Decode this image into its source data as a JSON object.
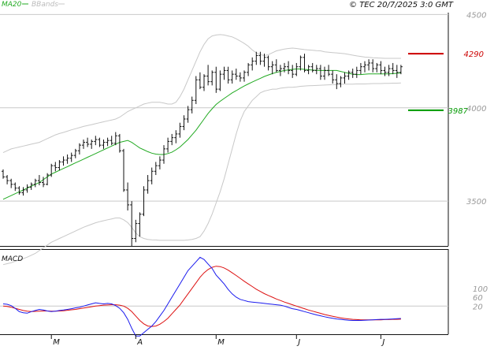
{
  "header": {
    "legend_ma": "MA20",
    "legend_bb": "BBands",
    "copyright": "© TEC 20/7/2025 3:0 GMT"
  },
  "colors": {
    "ma": "#22aa22",
    "bands": "#c8c8c8",
    "bars": "#111111",
    "resistance": "#cc0000",
    "support": "#009900",
    "macd": "#1a1aee",
    "signal": "#dd1111",
    "grid": "#c9c9c9",
    "axis_text": "#999999"
  },
  "chart_data": [
    {
      "type": "ohlc",
      "x_ticks": [
        {
          "label": "M",
          "index": 12
        },
        {
          "label": "A",
          "index": 33
        },
        {
          "label": "M",
          "index": 53
        },
        {
          "label": "J",
          "index": 73
        },
        {
          "label": "J",
          "index": 94
        }
      ],
      "y_ticks": [
        4500,
        4000,
        3500
      ],
      "ylim": [
        3260,
        4510
      ],
      "levels": {
        "resistance": {
          "value": 4290,
          "label": "4290"
        },
        "support": {
          "value": 3987,
          "label": "3987"
        }
      },
      "series_ma": [
        3510,
        3520,
        3530,
        3540,
        3550,
        3560,
        3570,
        3580,
        3590,
        3600,
        3615,
        3630,
        3645,
        3655,
        3665,
        3675,
        3685,
        3695,
        3705,
        3715,
        3725,
        3735,
        3745,
        3755,
        3765,
        3775,
        3785,
        3795,
        3805,
        3815,
        3820,
        3825,
        3815,
        3800,
        3785,
        3775,
        3765,
        3757,
        3752,
        3750,
        3750,
        3755,
        3762,
        3775,
        3790,
        3810,
        3830,
        3855,
        3880,
        3910,
        3940,
        3970,
        3995,
        4018,
        4035,
        4050,
        4065,
        4080,
        4092,
        4105,
        4117,
        4128,
        4138,
        4148,
        4158,
        4168,
        4176,
        4183,
        4190,
        4195,
        4200,
        4203,
        4206,
        4208,
        4208,
        4206,
        4204,
        4202,
        4201,
        4200,
        4200,
        4200,
        4200,
        4200,
        4195,
        4190,
        4185,
        4180,
        4178,
        4178,
        4180,
        4182,
        4182,
        4182,
        4182,
        4182,
        4182,
        4183,
        4185,
        4187
      ],
      "series_bb_upper": [
        3760,
        3770,
        3780,
        3785,
        3790,
        3795,
        3800,
        3805,
        3810,
        3815,
        3825,
        3835,
        3845,
        3855,
        3862,
        3868,
        3875,
        3882,
        3888,
        3894,
        3900,
        3905,
        3910,
        3915,
        3920,
        3925,
        3930,
        3935,
        3940,
        3950,
        3965,
        3980,
        3990,
        4000,
        4010,
        4020,
        4025,
        4030,
        4030,
        4030,
        4025,
        4020,
        4020,
        4030,
        4060,
        4100,
        4150,
        4200,
        4250,
        4300,
        4340,
        4370,
        4385,
        4390,
        4392,
        4390,
        4385,
        4380,
        4370,
        4358,
        4345,
        4330,
        4310,
        4295,
        4285,
        4280,
        4285,
        4295,
        4305,
        4310,
        4315,
        4318,
        4320,
        4318,
        4315,
        4312,
        4310,
        4308,
        4306,
        4305,
        4300,
        4298,
        4296,
        4294,
        4292,
        4290,
        4286,
        4282,
        4278,
        4275,
        4272,
        4270,
        4268,
        4267,
        4266,
        4265,
        4265,
        4265,
        4265,
        4265
      ],
      "series_bb_lower": [
        3160,
        3165,
        3170,
        3178,
        3185,
        3192,
        3200,
        3210,
        3220,
        3235,
        3250,
        3265,
        3280,
        3290,
        3300,
        3310,
        3320,
        3330,
        3340,
        3350,
        3360,
        3368,
        3376,
        3384,
        3390,
        3395,
        3400,
        3405,
        3410,
        3410,
        3400,
        3385,
        3360,
        3330,
        3310,
        3300,
        3295,
        3293,
        3292,
        3290,
        3290,
        3290,
        3290,
        3290,
        3290,
        3290,
        3292,
        3295,
        3300,
        3310,
        3340,
        3380,
        3430,
        3490,
        3550,
        3620,
        3700,
        3780,
        3860,
        3930,
        3980,
        4010,
        4040,
        4060,
        4080,
        4090,
        4095,
        4100,
        4100,
        4105,
        4108,
        4110,
        4110,
        4112,
        4115,
        4117,
        4118,
        4119,
        4120,
        4121,
        4122,
        4123,
        4124,
        4125,
        4126,
        4127,
        4127,
        4127,
        4128,
        4128,
        4128,
        4129,
        4130,
        4130,
        4130,
        4131,
        4131,
        4132,
        4132,
        4133
      ],
      "ohlc": [
        [
          3660,
          3670,
          3620,
          3630
        ],
        [
          3630,
          3640,
          3590,
          3610
        ],
        [
          3610,
          3620,
          3570,
          3590
        ],
        [
          3590,
          3600,
          3555,
          3570
        ],
        [
          3570,
          3580,
          3535,
          3545
        ],
        [
          3545,
          3575,
          3530,
          3560
        ],
        [
          3560,
          3590,
          3545,
          3575
        ],
        [
          3575,
          3600,
          3560,
          3590
        ],
        [
          3590,
          3620,
          3575,
          3610
        ],
        [
          3610,
          3640,
          3585,
          3600
        ],
        [
          3600,
          3630,
          3575,
          3590
        ],
        [
          3590,
          3650,
          3585,
          3640
        ],
        [
          3640,
          3700,
          3630,
          3690
        ],
        [
          3690,
          3710,
          3660,
          3680
        ],
        [
          3680,
          3720,
          3665,
          3710
        ],
        [
          3710,
          3740,
          3690,
          3720
        ],
        [
          3720,
          3750,
          3700,
          3730
        ],
        [
          3730,
          3760,
          3710,
          3745
        ],
        [
          3745,
          3780,
          3730,
          3770
        ],
        [
          3770,
          3810,
          3750,
          3800
        ],
        [
          3800,
          3830,
          3780,
          3815
        ],
        [
          3815,
          3840,
          3790,
          3805
        ],
        [
          3805,
          3830,
          3780,
          3820
        ],
        [
          3820,
          3850,
          3800,
          3830
        ],
        [
          3830,
          3840,
          3790,
          3800
        ],
        [
          3800,
          3830,
          3780,
          3815
        ],
        [
          3815,
          3840,
          3795,
          3825
        ],
        [
          3825,
          3850,
          3800,
          3810
        ],
        [
          3810,
          3870,
          3800,
          3850
        ],
        [
          3850,
          3860,
          3760,
          3770
        ],
        [
          3770,
          3780,
          3550,
          3560
        ],
        [
          3560,
          3600,
          3450,
          3480
        ],
        [
          3480,
          3500,
          3260,
          3300
        ],
        [
          3300,
          3400,
          3280,
          3380
        ],
        [
          3380,
          3440,
          3310,
          3430
        ],
        [
          3430,
          3580,
          3420,
          3560
        ],
        [
          3560,
          3640,
          3540,
          3610
        ],
        [
          3610,
          3680,
          3590,
          3660
        ],
        [
          3660,
          3710,
          3640,
          3690
        ],
        [
          3690,
          3740,
          3670,
          3720
        ],
        [
          3720,
          3800,
          3700,
          3780
        ],
        [
          3780,
          3840,
          3760,
          3820
        ],
        [
          3820,
          3860,
          3800,
          3840
        ],
        [
          3840,
          3880,
          3810,
          3860
        ],
        [
          3860,
          3920,
          3840,
          3900
        ],
        [
          3900,
          3960,
          3880,
          3940
        ],
        [
          3940,
          4010,
          3920,
          3990
        ],
        [
          3990,
          4060,
          3970,
          4040
        ],
        [
          4040,
          4170,
          4020,
          4150
        ],
        [
          4150,
          4190,
          4100,
          4110
        ],
        [
          4110,
          4180,
          4090,
          4170
        ],
        [
          4170,
          4230,
          4120,
          4140
        ],
        [
          4140,
          4200,
          4120,
          4190
        ],
        [
          4190,
          4220,
          4080,
          4100
        ],
        [
          4100,
          4200,
          4090,
          4180
        ],
        [
          4180,
          4220,
          4150,
          4200
        ],
        [
          4200,
          4220,
          4130,
          4150
        ],
        [
          4150,
          4200,
          4130,
          4180
        ],
        [
          4180,
          4210,
          4150,
          4170
        ],
        [
          4170,
          4190,
          4140,
          4160
        ],
        [
          4160,
          4200,
          4140,
          4190
        ],
        [
          4190,
          4240,
          4170,
          4230
        ],
        [
          4230,
          4270,
          4200,
          4250
        ],
        [
          4250,
          4300,
          4230,
          4280
        ],
        [
          4280,
          4300,
          4230,
          4250
        ],
        [
          4250,
          4290,
          4220,
          4270
        ],
        [
          4270,
          4280,
          4200,
          4220
        ],
        [
          4220,
          4250,
          4180,
          4230
        ],
        [
          4230,
          4260,
          4190,
          4200
        ],
        [
          4200,
          4230,
          4170,
          4210
        ],
        [
          4210,
          4240,
          4190,
          4220
        ],
        [
          4220,
          4250,
          4180,
          4200
        ],
        [
          4200,
          4230,
          4160,
          4180
        ],
        [
          4180,
          4240,
          4170,
          4220
        ],
        [
          4220,
          4280,
          4200,
          4270
        ],
        [
          4270,
          4290,
          4190,
          4200
        ],
        [
          4200,
          4230,
          4180,
          4220
        ],
        [
          4220,
          4240,
          4190,
          4200
        ],
        [
          4200,
          4230,
          4180,
          4210
        ],
        [
          4210,
          4230,
          4150,
          4170
        ],
        [
          4170,
          4220,
          4150,
          4200
        ],
        [
          4200,
          4230,
          4170,
          4180
        ],
        [
          4180,
          4200,
          4130,
          4150
        ],
        [
          4150,
          4180,
          4100,
          4130
        ],
        [
          4130,
          4170,
          4110,
          4160
        ],
        [
          4160,
          4190,
          4130,
          4170
        ],
        [
          4170,
          4200,
          4150,
          4190
        ],
        [
          4190,
          4210,
          4160,
          4180
        ],
        [
          4180,
          4220,
          4160,
          4200
        ],
        [
          4200,
          4240,
          4180,
          4220
        ],
        [
          4220,
          4250,
          4190,
          4230
        ],
        [
          4230,
          4260,
          4200,
          4240
        ],
        [
          4240,
          4260,
          4190,
          4210
        ],
        [
          4210,
          4240,
          4190,
          4230
        ],
        [
          4230,
          4250,
          4180,
          4200
        ],
        [
          4200,
          4220,
          4170,
          4190
        ],
        [
          4190,
          4230,
          4170,
          4210
        ],
        [
          4210,
          4240,
          4180,
          4200
        ],
        [
          4200,
          4230,
          4160,
          4190
        ],
        [
          4190,
          4230,
          4180,
          4220
        ]
      ]
    },
    {
      "type": "line",
      "title": "MACD",
      "y_ticks": [
        {
          "label": "100",
          "value": 100
        },
        {
          "label": "60",
          "value": 60
        },
        {
          "label": "20",
          "value": 20
        }
      ],
      "ylim": [
        -100,
        270
      ],
      "series": [
        {
          "values": [
            30,
            28,
            22,
            10,
            -5,
            -10,
            -12,
            -5,
            0,
            5,
            2,
            -2,
            -5,
            -3,
            0,
            2,
            5,
            8,
            12,
            15,
            20,
            25,
            30,
            35,
            32,
            30,
            32,
            30,
            22,
            10,
            -10,
            -40,
            -80,
            -115,
            -115,
            -100,
            -85,
            -70,
            -50,
            -25,
            0,
            30,
            60,
            90,
            120,
            150,
            180,
            200,
            220,
            240,
            230,
            210,
            190,
            160,
            140,
            120,
            95,
            75,
            60,
            50,
            45,
            40,
            38,
            36,
            34,
            32,
            30,
            28,
            26,
            24,
            20,
            14,
            8,
            5,
            0,
            -5,
            -10,
            -15,
            -20,
            -24,
            -28,
            -32,
            -35,
            -38,
            -40,
            -42,
            -44,
            -45,
            -45,
            -45,
            -44,
            -43,
            -42,
            -41,
            -40,
            -40,
            -39,
            -38,
            -37,
            -36
          ]
        },
        {
          "values": [
            20,
            18,
            15,
            10,
            5,
            0,
            -3,
            -5,
            -4,
            -3,
            -2,
            -2,
            -3,
            -3,
            -2,
            -1,
            1,
            3,
            5,
            8,
            11,
            14,
            17,
            20,
            22,
            24,
            25,
            26,
            26,
            24,
            20,
            10,
            -5,
            -25,
            -45,
            -60,
            -70,
            -72,
            -70,
            -62,
            -50,
            -35,
            -15,
            5,
            25,
            50,
            75,
            100,
            125,
            150,
            170,
            185,
            195,
            200,
            198,
            192,
            182,
            170,
            158,
            145,
            132,
            120,
            108,
            96,
            86,
            76,
            68,
            60,
            52,
            45,
            38,
            32,
            26,
            20,
            14,
            8,
            2,
            -3,
            -8,
            -13,
            -18,
            -22,
            -26,
            -30,
            -33,
            -36,
            -38,
            -40,
            -41,
            -42,
            -42,
            -42,
            -42,
            -42,
            -42,
            -41,
            -41,
            -40,
            -40,
            -39
          ]
        }
      ]
    }
  ]
}
